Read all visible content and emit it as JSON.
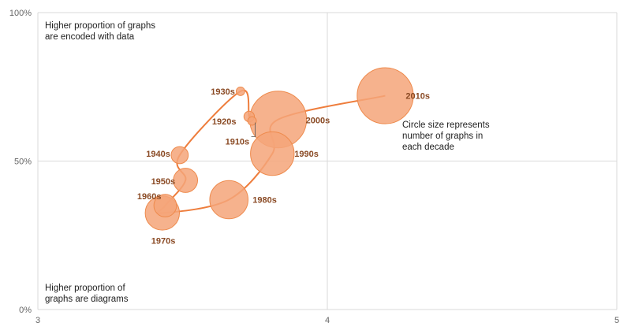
{
  "chart_data": {
    "type": "scatter",
    "title": "",
    "xlabel": "",
    "ylabel": "",
    "xlim": [
      3,
      5
    ],
    "ylim": [
      0,
      100
    ],
    "x_ticks": [
      "3",
      "4",
      "5"
    ],
    "y_ticks": [
      "0%",
      "50%",
      "100%"
    ],
    "grid": true,
    "colors": {
      "bubble_fill": "#f4a579",
      "bubble_stroke": "#ee8a4c",
      "path": "#ee7d3c",
      "label": "#8a4a24",
      "grid": "#d9d9d9"
    },
    "points": [
      {
        "label": "1910s",
        "x": 3.74,
        "y": 63.5,
        "size": 1
      },
      {
        "label": "1920s",
        "x": 3.73,
        "y": 65,
        "size": 1.5
      },
      {
        "label": "1930s",
        "x": 3.7,
        "y": 73.5,
        "size": 1
      },
      {
        "label": "1940s",
        "x": 3.49,
        "y": 52,
        "size": 4
      },
      {
        "label": "1950s",
        "x": 3.51,
        "y": 43.5,
        "size": 8
      },
      {
        "label": "1960s",
        "x": 3.44,
        "y": 35,
        "size": 7
      },
      {
        "label": "1970s",
        "x": 3.43,
        "y": 32.5,
        "size": 16
      },
      {
        "label": "1980s",
        "x": 3.66,
        "y": 37,
        "size": 20
      },
      {
        "label": "1990s",
        "x": 3.81,
        "y": 52.5,
        "size": 26
      },
      {
        "label": "2000s",
        "x": 3.83,
        "y": 64,
        "size": 44
      },
      {
        "label": "2010s",
        "x": 4.2,
        "y": 72,
        "size": 43
      }
    ],
    "annotations": {
      "top_left": [
        "Higher proportion of graphs",
        "are encoded with data"
      ],
      "bottom_left": [
        "Higher proportion of",
        "graphs are diagrams"
      ],
      "size_note": [
        "Circle size represents",
        "number of graphs in",
        "each decade"
      ]
    }
  }
}
